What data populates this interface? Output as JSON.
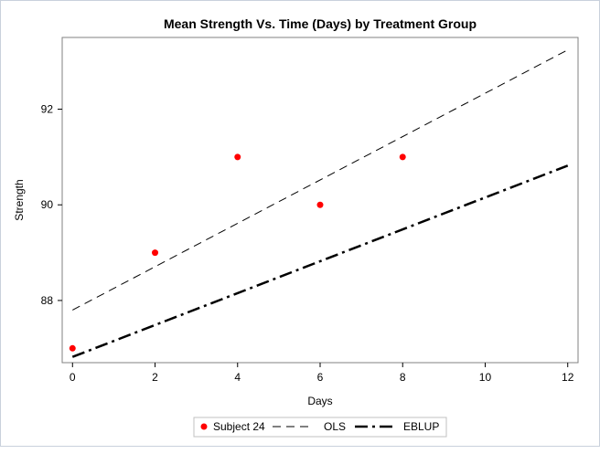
{
  "chart_data": {
    "type": "scatter",
    "title": "Mean Strength Vs. Time (Days) by Treatment Group",
    "xlabel": "Days",
    "ylabel": "Strength",
    "xlim": [
      -0.25,
      12.25
    ],
    "ylim": [
      86.7,
      93.5
    ],
    "x_ticks": [
      0,
      2,
      4,
      6,
      8,
      10,
      12
    ],
    "y_ticks": [
      88,
      90,
      92
    ],
    "grid": false,
    "legend_position": "bottom",
    "series": [
      {
        "name": "Subject 24",
        "kind": "markers",
        "color": "#ff0000",
        "points": [
          {
            "x": 0,
            "y": 87.0
          },
          {
            "x": 2,
            "y": 89.0
          },
          {
            "x": 4,
            "y": 91.0
          },
          {
            "x": 6,
            "y": 90.0
          },
          {
            "x": 8,
            "y": 91.0
          }
        ]
      },
      {
        "name": "OLS",
        "kind": "line",
        "style": "dashed",
        "color": "#000000",
        "points": [
          {
            "x": 0,
            "y": 87.8
          },
          {
            "x": 12,
            "y": 93.24
          }
        ]
      },
      {
        "name": "EBLUP",
        "kind": "line",
        "style": "dash-dot",
        "color": "#000000",
        "points": [
          {
            "x": 0,
            "y": 86.82
          },
          {
            "x": 12,
            "y": 90.82
          }
        ]
      }
    ]
  }
}
